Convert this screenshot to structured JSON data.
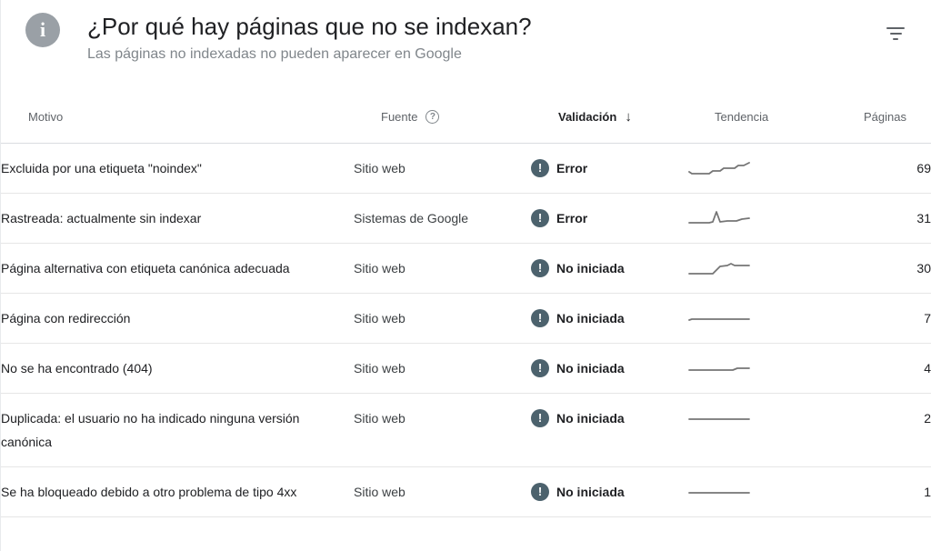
{
  "header": {
    "title": "¿Por qué hay páginas que no se indexan?",
    "subtitle": "Las páginas no indexadas no pueden aparecer en Google"
  },
  "icons": {
    "info": "i",
    "help": "?",
    "sort_desc": "↓",
    "exclamation": "!"
  },
  "table": {
    "columns": {
      "motivo": "Motivo",
      "fuente": "Fuente",
      "validacion": "Validación",
      "tendencia": "Tendencia",
      "paginas": "Páginas"
    },
    "sort": {
      "column": "Validación",
      "direction": "desc"
    },
    "rows": [
      {
        "motivo": "Excluida por una etiqueta \"noindex\"",
        "fuente": "Sitio web",
        "validacion": "Error",
        "paginas": "69",
        "trend": [
          [
            2,
            15
          ],
          [
            5,
            17
          ],
          [
            24,
            17
          ],
          [
            28,
            14
          ],
          [
            36,
            14
          ],
          [
            40,
            11
          ],
          [
            52,
            11
          ],
          [
            56,
            8
          ],
          [
            62,
            8
          ],
          [
            68,
            5
          ]
        ]
      },
      {
        "motivo": "Rastreada: actualmente sin indexar",
        "fuente": "Sistemas de Google",
        "validacion": "Error",
        "paginas": "31",
        "trend": [
          [
            2,
            16
          ],
          [
            24,
            16
          ],
          [
            28,
            15
          ],
          [
            32,
            4
          ],
          [
            36,
            15
          ],
          [
            44,
            14
          ],
          [
            54,
            14
          ],
          [
            60,
            12
          ],
          [
            68,
            11
          ]
        ]
      },
      {
        "motivo": "Página alternativa con etiqueta canónica adecuada",
        "fuente": "Sitio web",
        "validacion": "No iniciada",
        "paginas": "30",
        "trend": [
          [
            2,
            17
          ],
          [
            28,
            17
          ],
          [
            36,
            9
          ],
          [
            44,
            8
          ],
          [
            48,
            6
          ],
          [
            52,
            8
          ],
          [
            68,
            8
          ]
        ]
      },
      {
        "motivo": "Página con redirección",
        "fuente": "Sitio web",
        "validacion": "No iniciada",
        "paginas": "7",
        "trend": [
          [
            2,
            13
          ],
          [
            5,
            12
          ],
          [
            68,
            12
          ]
        ]
      },
      {
        "motivo": "No se ha encontrado (404)",
        "fuente": "Sitio web",
        "validacion": "No iniciada",
        "paginas": "4",
        "trend": [
          [
            2,
            13
          ],
          [
            50,
            13
          ],
          [
            55,
            11
          ],
          [
            68,
            11
          ]
        ]
      },
      {
        "motivo": "Duplicada: el usuario no ha indicado ninguna versión canónica",
        "fuente": "Sitio web",
        "validacion": "No iniciada",
        "paginas": "2",
        "trend": [
          [
            2,
            12
          ],
          [
            68,
            12
          ]
        ]
      },
      {
        "motivo": "Se ha bloqueado debido a otro problema de tipo 4xx",
        "fuente": "Sitio web",
        "validacion": "No iniciada",
        "paginas": "1",
        "trend": [
          [
            2,
            12
          ],
          [
            68,
            12
          ]
        ]
      }
    ]
  },
  "colors": {
    "title_text": "#202124",
    "subtitle_text": "#80868b",
    "info_icon_bg": "#9aa0a6",
    "column_header_text": "#5f6368",
    "status_icon_bg": "#4c626d",
    "sparkline": "#757575",
    "divider": "#e6e6e6"
  }
}
